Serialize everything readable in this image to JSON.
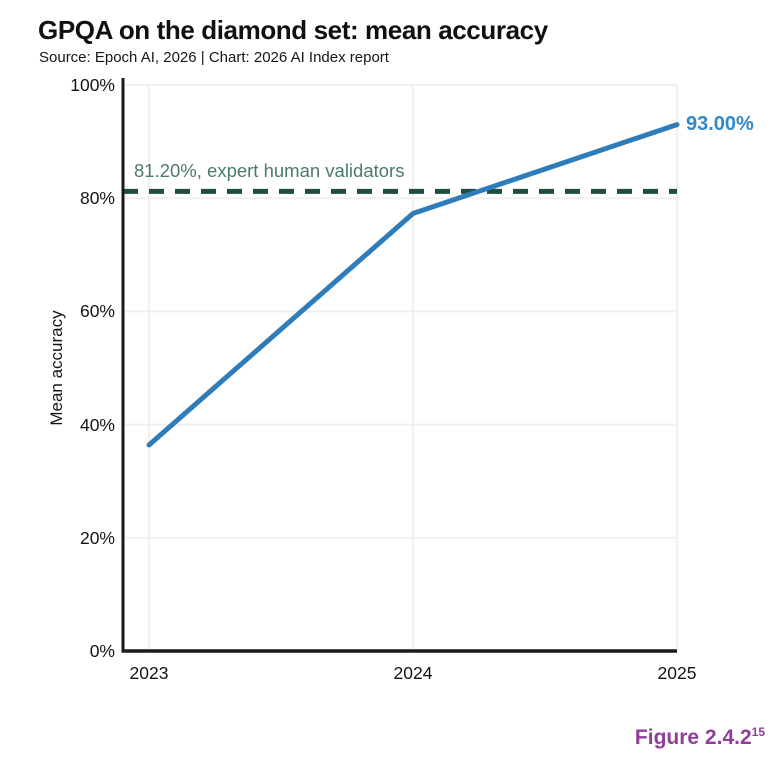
{
  "header": {
    "title": "GPQA on the diamond set: mean accuracy",
    "subtitle": "Source: Epoch AI, 2026 | Chart: 2026 AI Index report"
  },
  "chart_data": {
    "type": "line",
    "title": "GPQA on the diamond set: mean accuracy",
    "xlabel": "",
    "ylabel": "Mean accuracy",
    "x": [
      2023,
      2024,
      2025
    ],
    "x_tick_labels": [
      "2023",
      "2024",
      "2025"
    ],
    "series": [
      {
        "name": "Mean accuracy",
        "values": [
          36.4,
          77.3,
          93.0
        ]
      }
    ],
    "end_label": "93.00%",
    "reference_line": {
      "value": 81.2,
      "label": "81.20%, expert human validators",
      "style": "dashed"
    },
    "ylim": [
      0,
      100
    ],
    "y_ticks": [
      0,
      20,
      40,
      60,
      80,
      100
    ],
    "y_tick_labels": [
      "0%",
      "20%",
      "40%",
      "60%",
      "80%",
      "100%"
    ],
    "grid": true,
    "legend": "none",
    "colors": {
      "line": "#2e7cba",
      "end_label": "#3089c8",
      "reference_line": "#1d4e3e",
      "reference_label": "#4b7a6d",
      "gridline": "#f2eff0",
      "axis": "#1a1a1a"
    }
  },
  "figure_caption": {
    "label": "Figure 2.4.2",
    "superscript": "15",
    "color": "#8f3d97"
  }
}
